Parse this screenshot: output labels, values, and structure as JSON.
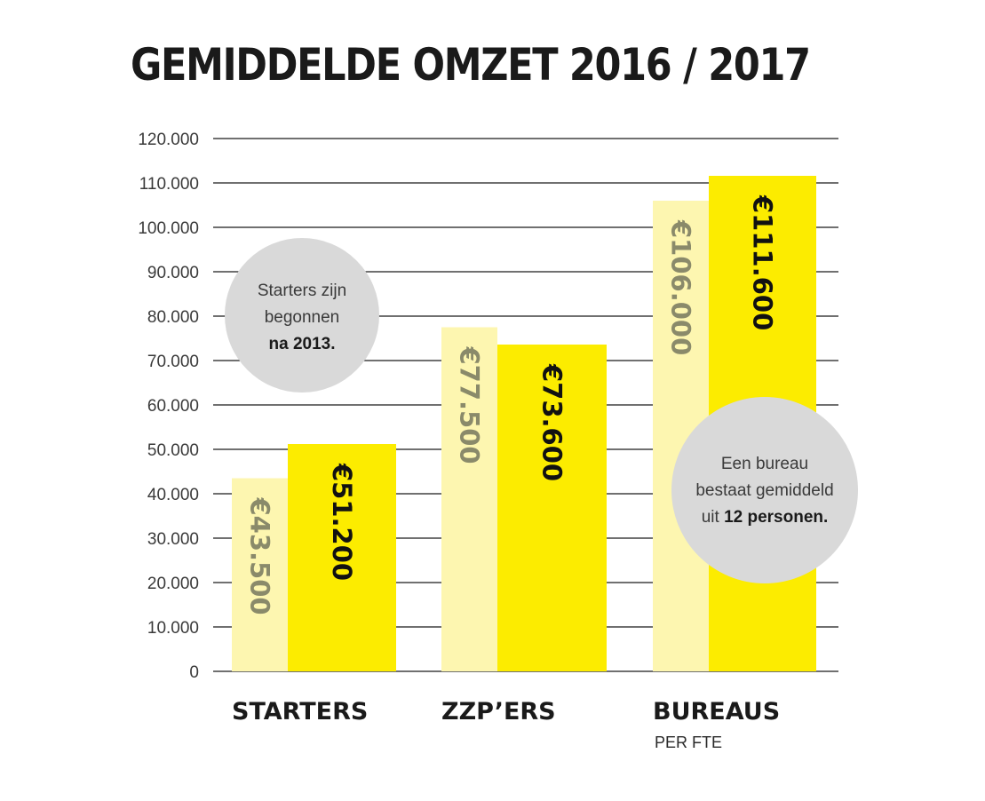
{
  "chart_data": {
    "type": "bar",
    "title": "GEMIDDELDE OMZET 2016 / 2017",
    "categories": [
      "STARTERS",
      "ZZP’ERS",
      "BUREAUS"
    ],
    "category_sublabels": [
      "",
      "",
      "PER FTE"
    ],
    "series": [
      {
        "values": [
          43500,
          77500,
          106000
        ],
        "labels": [
          "€43.500",
          "€77.500",
          "€106.000"
        ]
      },
      {
        "values": [
          51200,
          73600,
          111600
        ],
        "labels": [
          "€51.200",
          "€73.600",
          "€111.600"
        ]
      }
    ],
    "ylim": [
      0,
      120000
    ],
    "yticks": [
      0,
      10000,
      20000,
      30000,
      40000,
      50000,
      60000,
      70000,
      80000,
      90000,
      100000,
      110000,
      120000
    ],
    "ytick_labels": [
      "0",
      "10.000",
      "20.000",
      "30.000",
      "40.000",
      "50.000",
      "60.000",
      "70.000",
      "80.000",
      "90.000",
      "100.000",
      "110.000",
      "120.000"
    ],
    "grid": true,
    "colors": {
      "series_0": "#fdf6b0",
      "series_1": "#fcec00",
      "label_0": "#8a8a6a",
      "label_1": "#111111",
      "gridline": "#1a1a1a",
      "note_circle": "#d9d9d9"
    },
    "annotations": [
      {
        "lines": [
          "Starters zijn",
          "begonnen"
        ],
        "bold": "na 2013."
      },
      {
        "lines": [
          "Een bureau",
          "bestaat gemiddeld"
        ],
        "prefix": "uit ",
        "bold": "12 personen."
      }
    ]
  }
}
